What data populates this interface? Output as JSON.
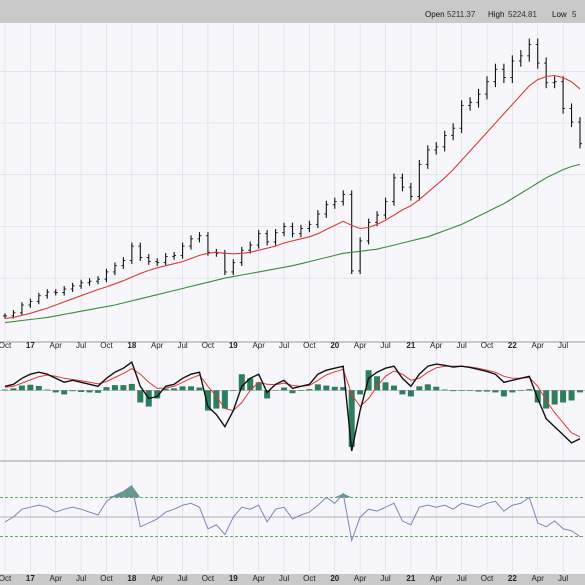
{
  "header": {
    "open_label": "Open",
    "open_value": "5211.37",
    "high_label": "High",
    "high_value": "5224.81",
    "low_label": "Low",
    "low_value": "5"
  },
  "colors": {
    "price_bars": "#111111",
    "ma_fast": "#d83a3a",
    "ma_slow": "#3a8a3a",
    "macd_line": "#111111",
    "macd_signal": "#d83a3a",
    "macd_histogram": "#2e7d5e",
    "rsi_line": "#7d86b8",
    "rsi_fill": "#2e7d5e",
    "panel_bg": "#f7f7fb",
    "grid": "#dcdce6"
  },
  "chart_data": [
    {
      "type": "line",
      "panel": "price",
      "x_ticks": [
        "Oct",
        "17",
        "Apr",
        "Jul",
        "Oct",
        "18",
        "Apr",
        "Jul",
        "Oct",
        "19",
        "Apr",
        "Jul",
        "Oct",
        "20",
        "Apr",
        "Jul",
        "21",
        "Apr",
        "Jul",
        "Oct",
        "22",
        "Apr",
        "Jul"
      ],
      "bold_ticks": [
        "17",
        "18",
        "19",
        "20",
        "21",
        "22"
      ],
      "x": [
        "2016-10",
        "2016-11",
        "2016-12",
        "2017-01",
        "2017-02",
        "2017-03",
        "2017-04",
        "2017-05",
        "2017-06",
        "2017-07",
        "2017-08",
        "2017-09",
        "2017-10",
        "2017-11",
        "2017-12",
        "2018-01",
        "2018-02",
        "2018-03",
        "2018-04",
        "2018-05",
        "2018-06",
        "2018-07",
        "2018-08",
        "2018-09",
        "2018-10",
        "2018-11",
        "2018-12",
        "2019-01",
        "2019-02",
        "2019-03",
        "2019-04",
        "2019-05",
        "2019-06",
        "2019-07",
        "2019-08",
        "2019-09",
        "2019-10",
        "2019-11",
        "2019-12",
        "2020-01",
        "2020-02",
        "2020-03",
        "2020-04",
        "2020-05",
        "2020-06",
        "2020-07",
        "2020-08",
        "2020-09",
        "2020-10",
        "2020-11",
        "2020-12",
        "2021-01",
        "2021-02",
        "2021-03",
        "2021-04",
        "2021-05",
        "2021-06",
        "2021-07",
        "2021-08",
        "2021-09",
        "2021-10",
        "2021-11",
        "2021-12",
        "2022-01",
        "2022-02",
        "2022-03",
        "2022-04",
        "2022-05",
        "2022-06"
      ],
      "series": [
        {
          "role": "price",
          "values": [
            2135,
            2165,
            2240,
            2275,
            2330,
            2365,
            2360,
            2395,
            2425,
            2455,
            2470,
            2490,
            2560,
            2620,
            2670,
            2810,
            2700,
            2660,
            2650,
            2710,
            2720,
            2810,
            2880,
            2910,
            2750,
            2740,
            2560,
            2650,
            2770,
            2820,
            2930,
            2850,
            2940,
            3000,
            2930,
            2980,
            3020,
            3120,
            3210,
            3240,
            3310,
            2570,
            2860,
            3040,
            3110,
            3240,
            3470,
            3380,
            3290,
            3600,
            3740,
            3770,
            3880,
            3950,
            4170,
            4200,
            4280,
            4400,
            4520,
            4440,
            4600,
            4650,
            4760,
            4580,
            4390,
            4400,
            4140,
            4010,
            3800
          ]
        },
        {
          "role": "ma_fast",
          "values": [
            2110,
            2120,
            2140,
            2160,
            2185,
            2210,
            2240,
            2270,
            2300,
            2330,
            2360,
            2390,
            2415,
            2445,
            2475,
            2510,
            2545,
            2575,
            2600,
            2620,
            2640,
            2660,
            2690,
            2720,
            2740,
            2750,
            2740,
            2735,
            2740,
            2750,
            2770,
            2790,
            2810,
            2840,
            2860,
            2880,
            2900,
            2930,
            2970,
            3010,
            3050,
            3010,
            2980,
            2990,
            3020,
            3060,
            3110,
            3160,
            3200,
            3260,
            3330,
            3400,
            3470,
            3550,
            3640,
            3730,
            3820,
            3910,
            4000,
            4090,
            4180,
            4270,
            4360,
            4420,
            4450,
            4460,
            4440,
            4400,
            4330
          ]
        },
        {
          "role": "ma_slow",
          "values": [
            2070,
            2080,
            2090,
            2100,
            2110,
            2120,
            2135,
            2150,
            2165,
            2180,
            2195,
            2210,
            2225,
            2240,
            2260,
            2280,
            2300,
            2320,
            2340,
            2360,
            2380,
            2400,
            2420,
            2440,
            2460,
            2480,
            2500,
            2515,
            2530,
            2545,
            2560,
            2575,
            2590,
            2605,
            2620,
            2640,
            2660,
            2680,
            2700,
            2720,
            2740,
            2750,
            2760,
            2770,
            2780,
            2800,
            2820,
            2840,
            2860,
            2880,
            2900,
            2930,
            2960,
            2990,
            3020,
            3060,
            3100,
            3140,
            3180,
            3220,
            3270,
            3320,
            3370,
            3420,
            3470,
            3510,
            3550,
            3580,
            3600
          ]
        }
      ],
      "ylim": [
        1950,
        4900
      ]
    },
    {
      "type": "line",
      "panel": "macd",
      "x_ref": "price",
      "series": [
        {
          "role": "macd",
          "values": [
            10,
            15,
            30,
            40,
            45,
            40,
            30,
            20,
            25,
            20,
            15,
            10,
            30,
            45,
            55,
            70,
            10,
            -20,
            -15,
            10,
            15,
            30,
            40,
            45,
            -40,
            -60,
            -90,
            -50,
            10,
            30,
            40,
            -5,
            15,
            25,
            5,
            10,
            15,
            40,
            50,
            55,
            60,
            -150,
            -50,
            30,
            45,
            55,
            60,
            30,
            10,
            40,
            60,
            65,
            62,
            58,
            60,
            57,
            52,
            47,
            40,
            20,
            25,
            30,
            35,
            -20,
            -70,
            -90,
            -110,
            -130,
            -120
          ]
        },
        {
          "role": "signal",
          "values": [
            8,
            10,
            18,
            26,
            34,
            38,
            35,
            30,
            27,
            24,
            20,
            16,
            22,
            32,
            42,
            54,
            40,
            20,
            5,
            6,
            10,
            20,
            30,
            38,
            10,
            -15,
            -45,
            -50,
            -30,
            0,
            20,
            15,
            14,
            18,
            12,
            10,
            12,
            25,
            38,
            46,
            52,
            -10,
            -40,
            -20,
            10,
            35,
            48,
            40,
            25,
            30,
            45,
            56,
            60,
            60,
            60,
            58,
            55,
            50,
            45,
            35,
            30,
            30,
            32,
            10,
            -25,
            -55,
            -80,
            -105,
            -115
          ]
        },
        {
          "role": "histogram",
          "values": [
            2,
            5,
            12,
            14,
            11,
            2,
            -5,
            -10,
            -2,
            -4,
            -5,
            -6,
            8,
            13,
            13,
            16,
            -30,
            -40,
            -20,
            4,
            5,
            10,
            10,
            7,
            -50,
            -45,
            -45,
            0,
            40,
            30,
            20,
            -20,
            1,
            7,
            -7,
            0,
            3,
            15,
            12,
            9,
            8,
            -140,
            -10,
            50,
            35,
            20,
            12,
            -10,
            -15,
            10,
            15,
            9,
            2,
            -2,
            0,
            -1,
            -3,
            -3,
            -5,
            -15,
            -5,
            0,
            3,
            -30,
            -45,
            -35,
            -30,
            -25,
            -5
          ]
        }
      ],
      "ylim": [
        -160,
        100
      ]
    },
    {
      "type": "line",
      "panel": "rsi",
      "x_ref": "price",
      "series": [
        {
          "role": "rsi",
          "values": [
            45,
            50,
            58,
            60,
            62,
            60,
            55,
            58,
            60,
            58,
            55,
            52,
            66,
            72,
            76,
            82,
            40,
            44,
            48,
            55,
            58,
            62,
            64,
            60,
            38,
            42,
            32,
            50,
            60,
            58,
            62,
            45,
            58,
            60,
            48,
            52,
            55,
            62,
            70,
            64,
            74,
            26,
            50,
            58,
            56,
            60,
            64,
            46,
            42,
            60,
            62,
            60,
            62,
            58,
            64,
            62,
            60,
            64,
            66,
            56,
            62,
            64,
            70,
            44,
            40,
            46,
            38,
            36,
            30
          ]
        }
      ],
      "reference_lines": [
        70,
        50,
        30
      ],
      "ylim": [
        0,
        100
      ]
    }
  ]
}
